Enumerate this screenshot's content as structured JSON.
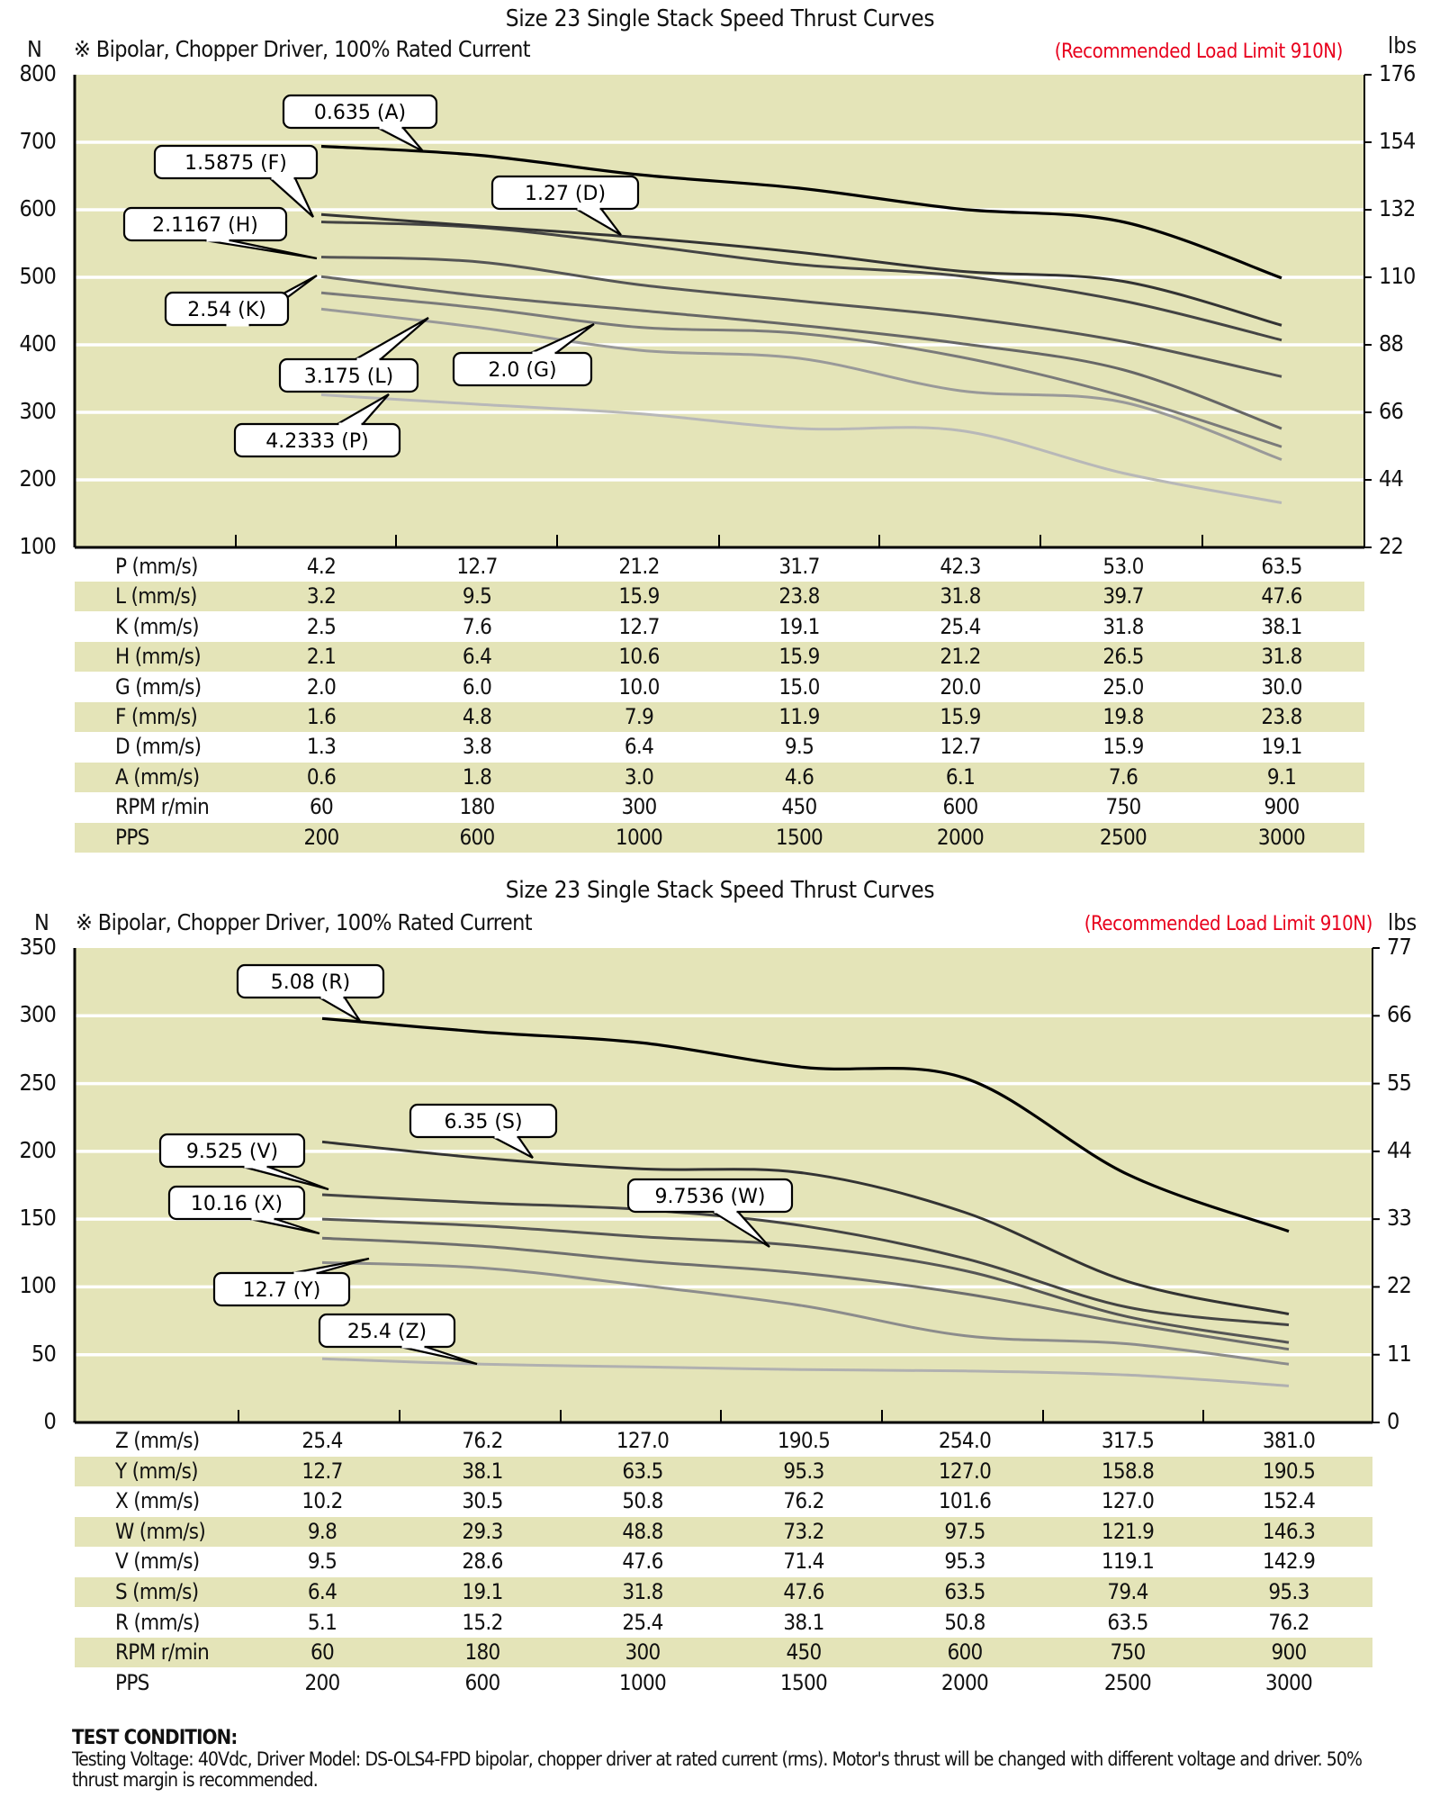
{
  "chart_data": [
    {
      "type": "line",
      "title": "Size 23 Single Stack Speed Thrust Curves",
      "subtitle": "※ Bipolar, Chopper Driver, 100% Rated Current",
      "note": "(Recommended Load Limit 910N)",
      "ylabel": "N",
      "ylabel_right": "lbs",
      "ylim": [
        100,
        800
      ],
      "yticks": [
        "800",
        "700",
        "600",
        "500",
        "400",
        "300",
        "200",
        "100"
      ],
      "yticks_right": [
        "176",
        "154",
        "132",
        "110",
        "88",
        "66",
        "44",
        "22"
      ],
      "grid": true,
      "series": [
        {
          "key": "A",
          "label": "0.635  (A)",
          "color": "#000000",
          "values": [
            694,
            681,
            652,
            632,
            601,
            582,
            499
          ]
        },
        {
          "key": "D",
          "label": "1.27  (D)",
          "color": "#333333",
          "values": [
            593,
            576,
            559,
            537,
            509,
            494,
            429
          ]
        },
        {
          "key": "F",
          "label": "1.5875  (F)",
          "color": "#444444",
          "values": [
            582,
            574,
            548,
            519,
            502,
            465,
            407
          ]
        },
        {
          "key": "H",
          "label": "2.1167  (H)",
          "color": "#555555",
          "values": [
            530,
            523,
            489,
            465,
            441,
            405,
            353
          ]
        },
        {
          "key": "K",
          "label": "2.54  (K)",
          "color": "#666666",
          "values": [
            501,
            473,
            451,
            429,
            402,
            363,
            276
          ]
        },
        {
          "key": "G",
          "label": "2.0  (G)",
          "color": "#7a7a7a",
          "values": [
            477,
            455,
            426,
            417,
            382,
            324,
            249
          ]
        },
        {
          "key": "L",
          "label": "3.175  (L)",
          "color": "#999999",
          "values": [
            453,
            426,
            392,
            380,
            332,
            315,
            230
          ]
        },
        {
          "key": "P",
          "label": "4.2333  (P)",
          "color": "#b8b8b8",
          "values": [
            326,
            312,
            298,
            276,
            273,
            210,
            166
          ]
        }
      ],
      "table": {
        "rows": [
          {
            "label": "P (mm/s)",
            "values": [
              "4.2",
              "12.7",
              "21.2",
              "31.7",
              "42.3",
              "53.0",
              "63.5"
            ]
          },
          {
            "label": "L (mm/s)",
            "values": [
              "3.2",
              "9.5",
              "15.9",
              "23.8",
              "31.8",
              "39.7",
              "47.6"
            ]
          },
          {
            "label": "K (mm/s)",
            "values": [
              "2.5",
              "7.6",
              "12.7",
              "19.1",
              "25.4",
              "31.8",
              "38.1"
            ]
          },
          {
            "label": "H (mm/s)",
            "values": [
              "2.1",
              "6.4",
              "10.6",
              "15.9",
              "21.2",
              "26.5",
              "31.8"
            ]
          },
          {
            "label": "G (mm/s)",
            "values": [
              "2.0",
              "6.0",
              "10.0",
              "15.0",
              "20.0",
              "25.0",
              "30.0"
            ]
          },
          {
            "label": "F (mm/s)",
            "values": [
              "1.6",
              "4.8",
              "7.9",
              "11.9",
              "15.9",
              "19.8",
              "23.8"
            ]
          },
          {
            "label": "D (mm/s)",
            "values": [
              "1.3",
              "3.8",
              "6.4",
              "9.5",
              "12.7",
              "15.9",
              "19.1"
            ]
          },
          {
            "label": "A (mm/s)",
            "values": [
              "0.6",
              "1.8",
              "3.0",
              "4.6",
              "6.1",
              "7.6",
              "9.1"
            ]
          },
          {
            "label": "RPM r/min",
            "values": [
              "60",
              "180",
              "300",
              "450",
              "600",
              "750",
              "900"
            ]
          },
          {
            "label": "PPS",
            "values": [
              "200",
              "600",
              "1000",
              "1500",
              "2000",
              "2500",
              "3000"
            ]
          }
        ]
      }
    },
    {
      "type": "line",
      "title": "Size 23 Single Stack Speed Thrust Curves",
      "subtitle": "※ Bipolar, Chopper Driver, 100% Rated Current",
      "note": "(Recommended Load Limit 910N)",
      "ylabel": "N",
      "ylabel_right": "lbs",
      "ylim": [
        0,
        350
      ],
      "yticks": [
        "350",
        "300",
        "250",
        "200",
        "150",
        "100",
        "50",
        "0"
      ],
      "yticks_right": [
        "77",
        "66",
        "55",
        "44",
        "33",
        "22",
        "11",
        "0"
      ],
      "grid": true,
      "series": [
        {
          "key": "R",
          "label": "5.08  (R)",
          "color": "#000000",
          "values": [
            298,
            288,
            280,
            262,
            254,
            183,
            141
          ]
        },
        {
          "key": "S",
          "label": "6.35  (S)",
          "color": "#333333",
          "values": [
            207,
            195,
            187,
            184,
            155,
            104,
            80
          ]
        },
        {
          "key": "V",
          "label": "9.525  (V)",
          "color": "#444444",
          "values": [
            168,
            162,
            157,
            145,
            121,
            85,
            72
          ]
        },
        {
          "key": "W",
          "label": "9.7536  (W)",
          "color": "#555555",
          "values": [
            150,
            145,
            137,
            130,
            112,
            78,
            59
          ]
        },
        {
          "key": "X",
          "label": "10.16  (X)",
          "color": "#6e6e6e",
          "values": [
            136,
            130,
            119,
            110,
            95,
            73,
            54
          ]
        },
        {
          "key": "Y",
          "label": "12.7  (Y)",
          "color": "#8c8c8c",
          "values": [
            118,
            114,
            101,
            86,
            64,
            58,
            43
          ]
        },
        {
          "key": "Z",
          "label": "25.4  (Z)",
          "color": "#b0b0b0",
          "values": [
            47,
            43,
            41,
            39,
            38,
            35,
            27
          ]
        }
      ],
      "table": {
        "rows": [
          {
            "label": "Z (mm/s)",
            "values": [
              "25.4",
              "76.2",
              "127.0",
              "190.5",
              "254.0",
              "317.5",
              "381.0"
            ]
          },
          {
            "label": "Y (mm/s)",
            "values": [
              "12.7",
              "38.1",
              "63.5",
              "95.3",
              "127.0",
              "158.8",
              "190.5"
            ]
          },
          {
            "label": "X (mm/s)",
            "values": [
              "10.2",
              "30.5",
              "50.8",
              "76.2",
              "101.6",
              "127.0",
              "152.4"
            ]
          },
          {
            "label": "W (mm/s)",
            "values": [
              "9.8",
              "29.3",
              "48.8",
              "73.2",
              "97.5",
              "121.9",
              "146.3"
            ]
          },
          {
            "label": "V (mm/s)",
            "values": [
              "9.5",
              "28.6",
              "47.6",
              "71.4",
              "95.3",
              "119.1",
              "142.9"
            ]
          },
          {
            "label": "S (mm/s)",
            "values": [
              "6.4",
              "19.1",
              "31.8",
              "47.6",
              "63.5",
              "79.4",
              "95.3"
            ]
          },
          {
            "label": "R (mm/s)",
            "values": [
              "5.1",
              "15.2",
              "25.4",
              "38.1",
              "50.8",
              "63.5",
              "76.2"
            ]
          },
          {
            "label": "RPM r/min",
            "values": [
              "60",
              "180",
              "300",
              "450",
              "600",
              "750",
              "900"
            ]
          },
          {
            "label": "PPS",
            "values": [
              "200",
              "600",
              "1000",
              "1500",
              "2000",
              "2500",
              "3000"
            ]
          }
        ]
      }
    }
  ],
  "colors": {
    "plot_bg": "#e4e4b8",
    "accent_red": "#e8001c"
  },
  "test_condition": {
    "title": "TEST CONDITION:",
    "body": "Testing Voltage: 40Vdc, Driver Model: DS-OLS4-FPD bipolar, chopper driver at rated current (rms). Motor's thrust will be changed with different voltage and driver. 50% thrust margin is recommended."
  }
}
